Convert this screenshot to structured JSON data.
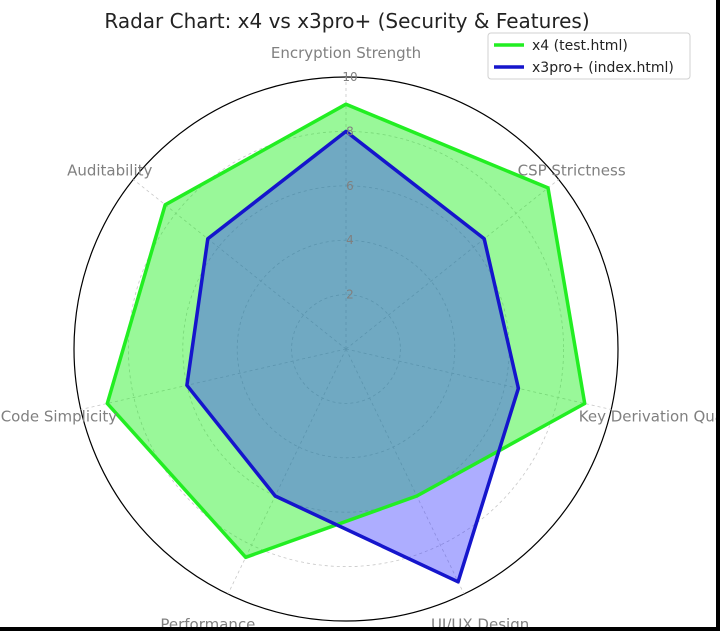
{
  "chart_data": {
    "type": "radar",
    "title": "Radar Chart: x4 vs x3pro+ (Security & Features)",
    "axes": [
      "Encryption Strength",
      "CSP Strictness",
      "Key Derivation Quality",
      "UI/UX Design",
      "Performance",
      "Code Simplicity",
      "Auditability"
    ],
    "rlim": [
      0,
      10
    ],
    "rticks": [
      "2",
      "4",
      "6",
      "8",
      "10"
    ],
    "rtick_values": [
      2,
      4,
      6,
      8,
      10
    ],
    "grid": true,
    "legend_position": "top-right",
    "series": [
      {
        "name": "x4 (test.html)",
        "values": [
          9,
          9.5,
          9,
          6,
          8.5,
          9,
          8.5
        ],
        "line_color": "#22ee22",
        "fill_color": "#00ee00",
        "fill_opacity": 0.4
      },
      {
        "name": "x3pro+ (index.html)",
        "values": [
          8,
          6.5,
          6.5,
          9.5,
          6,
          6,
          6.5
        ],
        "line_color": "#1515cc",
        "fill_color": "#3333ff",
        "fill_opacity": 0.4
      }
    ]
  }
}
